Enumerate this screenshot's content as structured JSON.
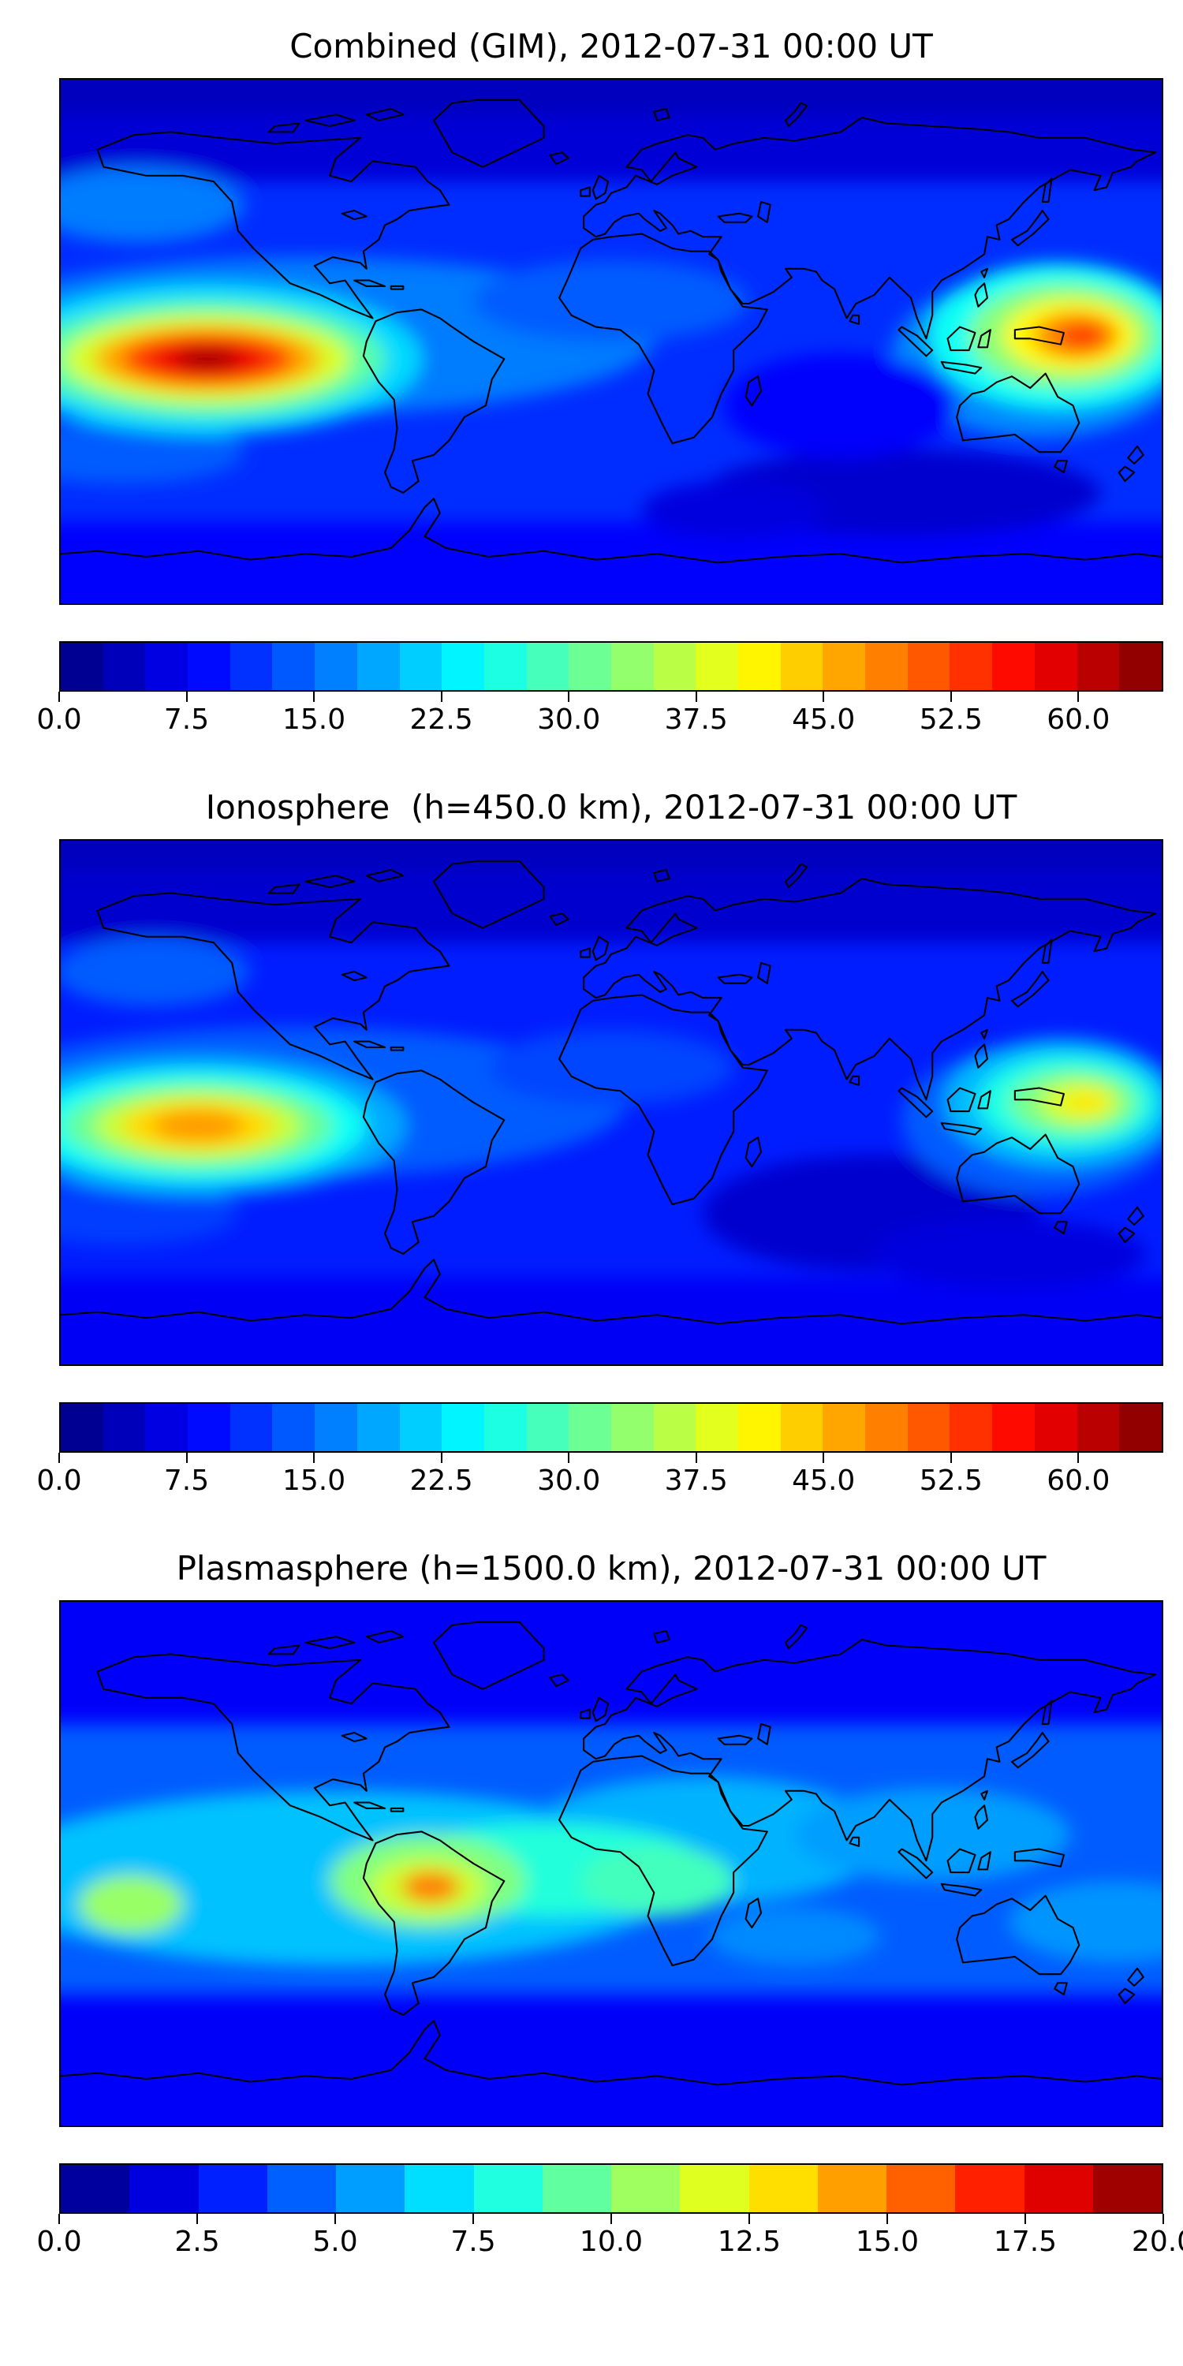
{
  "panels": [
    {
      "title": "Combined (GIM), 2012-07-31 00:00 UT",
      "colorbar": {
        "vmin": 0,
        "vmax": 65,
        "step": 2.5,
        "tick_values": [
          0,
          7.5,
          15,
          22.5,
          30,
          37.5,
          45,
          52.5,
          60
        ],
        "tick_labels": [
          "0.0",
          "7.5",
          "15.0",
          "22.5",
          "30.0",
          "37.5",
          "45.0",
          "52.5",
          "60.0"
        ]
      }
    },
    {
      "title": "Ionosphere  (h=450.0 km), 2012-07-31 00:00 UT",
      "colorbar": {
        "vmin": 0,
        "vmax": 65,
        "step": 2.5,
        "tick_values": [
          0,
          7.5,
          15,
          22.5,
          30,
          37.5,
          45,
          52.5,
          60
        ],
        "tick_labels": [
          "0.0",
          "7.5",
          "15.0",
          "22.5",
          "30.0",
          "37.5",
          "45.0",
          "52.5",
          "60.0"
        ]
      }
    },
    {
      "title": "Plasmasphere (h=1500.0 km), 2012-07-31 00:00 UT",
      "colorbar": {
        "vmin": 0,
        "vmax": 20,
        "step": 1.25,
        "tick_values": [
          0,
          2.5,
          5,
          7.5,
          10,
          12.5,
          15,
          17.5,
          20
        ],
        "tick_labels": [
          "0.0",
          "2.5",
          "5.0",
          "7.5",
          "10.0",
          "12.5",
          "15.0",
          "17.5",
          "20.0"
        ]
      }
    }
  ],
  "chart_data": [
    {
      "type": "heatmap",
      "title": "Combined (GIM), 2012-07-31 00:00 UT",
      "projection": "equirectangular",
      "lon_range": [
        -180,
        180
      ],
      "lat_range": [
        -90,
        90
      ],
      "colormap": "jet",
      "value_range": [
        0,
        65
      ],
      "contour_step": 2.5,
      "colorbar_ticks": [
        0,
        7.5,
        15,
        22.5,
        30,
        37.5,
        45,
        52.5,
        60
      ],
      "background_value": 11,
      "features": [
        {
          "name": "north-polar-low",
          "shape": "band",
          "lon0": -190,
          "lon1": 190,
          "lat0": 55,
          "lat1": 110,
          "value": 5.5
        },
        {
          "name": "arctic-minimum",
          "shape": "band",
          "lon0": -190,
          "lon1": 190,
          "lat0": 78,
          "lat1": 110,
          "value": 4
        },
        {
          "name": "south-polar-low",
          "shape": "band",
          "lon0": -190,
          "lon1": 190,
          "lat0": -110,
          "lat1": -62,
          "value": 8
        },
        {
          "name": "south-indian-minimum",
          "shape": "ellipse",
          "lon": 95,
          "lat": -52,
          "rx": 65,
          "ry": 15,
          "value": 5
        },
        {
          "name": "south-atlantic-minimum",
          "shape": "ellipse",
          "lon": 40,
          "lat": -58,
          "rx": 30,
          "ry": 10,
          "value": 6
        },
        {
          "name": "northeast-pacific-moderate",
          "shape": "ellipse",
          "lon": -155,
          "lat": 47,
          "rx": 35,
          "ry": 13,
          "value": 16
        },
        {
          "name": "equatorial-band-west",
          "shape": "ellipse",
          "lon": -100,
          "lat": 2,
          "rx": 115,
          "ry": 27,
          "value": 16
        },
        {
          "name": "africa-moderate",
          "shape": "ellipse",
          "lon": 0,
          "lat": 14,
          "rx": 45,
          "ry": 14,
          "value": 14
        },
        {
          "name": "southeast-asia-moderate",
          "shape": "ellipse",
          "lon": 140,
          "lat": -5,
          "rx": 48,
          "ry": 28,
          "value": 17
        },
        {
          "name": "south-pacific-tail",
          "shape": "ellipse",
          "lon": -160,
          "lat": -38,
          "rx": 40,
          "ry": 11,
          "value": 14
        },
        {
          "name": "indian-ocean-low",
          "shape": "ellipse",
          "lon": 75,
          "lat": -22,
          "rx": 38,
          "ry": 18,
          "value": 8
        },
        {
          "name": "pacific-anomaly-halo",
          "shape": "ellipse",
          "lon": -132,
          "lat": -6,
          "rx": 70,
          "ry": 26,
          "value": 22
        },
        {
          "name": "pacific-anomaly-ring5",
          "shape": "ellipse",
          "lon": -132,
          "lat": -6,
          "rx": 58,
          "ry": 20,
          "value": 30
        },
        {
          "name": "pacific-anomaly-ring4",
          "shape": "ellipse",
          "lon": -132,
          "lat": -6,
          "rx": 47,
          "ry": 15.5,
          "value": 38
        },
        {
          "name": "pacific-anomaly-ring3",
          "shape": "ellipse",
          "lon": -132,
          "lat": -6,
          "rx": 37,
          "ry": 11.5,
          "value": 46
        },
        {
          "name": "pacific-anomaly-ring2",
          "shape": "ellipse",
          "lon": -132,
          "lat": -6,
          "rx": 28,
          "ry": 8.5,
          "value": 53
        },
        {
          "name": "pacific-anomaly-ring1",
          "shape": "ellipse",
          "lon": -132,
          "lat": -6,
          "rx": 19,
          "ry": 6,
          "value": 58
        },
        {
          "name": "pacific-anomaly-core",
          "shape": "ellipse",
          "lon": -132,
          "lat": -6,
          "rx": 10,
          "ry": 3.5,
          "value": 63
        },
        {
          "name": "asia-anomaly-halo",
          "shape": "ellipse",
          "lon": 146,
          "lat": 2,
          "rx": 42,
          "ry": 25,
          "value": 25
        },
        {
          "name": "asia-anomaly-ring3",
          "shape": "ellipse",
          "lon": 148,
          "lat": 2,
          "rx": 31,
          "ry": 18,
          "value": 33
        },
        {
          "name": "asia-anomaly-ring2",
          "shape": "ellipse",
          "lon": 150,
          "lat": 2,
          "rx": 22,
          "ry": 12.5,
          "value": 41
        },
        {
          "name": "asia-anomaly-ring1",
          "shape": "ellipse",
          "lon": 152,
          "lat": 2,
          "rx": 14,
          "ry": 8,
          "value": 48
        },
        {
          "name": "asia-anomaly-core",
          "shape": "ellipse",
          "lon": 154,
          "lat": 2,
          "rx": 7.5,
          "ry": 4.5,
          "value": 53
        }
      ]
    },
    {
      "type": "heatmap",
      "title": "Ionosphere  (h=450.0 km), 2012-07-31 00:00 UT",
      "projection": "equirectangular",
      "lon_range": [
        -180,
        180
      ],
      "lat_range": [
        -90,
        90
      ],
      "colormap": "jet",
      "value_range": [
        0,
        65
      ],
      "contour_step": 2.5,
      "colorbar_ticks": [
        0,
        7.5,
        15,
        22.5,
        30,
        37.5,
        45,
        52.5,
        60
      ],
      "background_value": 10,
      "features": [
        {
          "name": "north-polar-low",
          "shape": "band",
          "lon0": -190,
          "lon1": 190,
          "lat0": 55,
          "lat1": 110,
          "value": 5
        },
        {
          "name": "arctic-minimum",
          "shape": "band",
          "lon0": -190,
          "lon1": 190,
          "lat0": 80,
          "lat1": 110,
          "value": 4
        },
        {
          "name": "south-polar-low",
          "shape": "band",
          "lon0": -190,
          "lon1": 190,
          "lat0": -110,
          "lat1": -60,
          "value": 7.5
        },
        {
          "name": "indian-ocean-minimum",
          "shape": "ellipse",
          "lon": 85,
          "lat": -38,
          "rx": 55,
          "ry": 20,
          "value": 5
        },
        {
          "name": "south-pacific-minimum",
          "shape": "ellipse",
          "lon": 130,
          "lat": -52,
          "rx": 45,
          "ry": 12,
          "value": 6
        },
        {
          "name": "northeast-pacific-moderate",
          "shape": "ellipse",
          "lon": -150,
          "lat": 45,
          "rx": 32,
          "ry": 12,
          "value": 14
        },
        {
          "name": "equatorial-band-west",
          "shape": "ellipse",
          "lon": -105,
          "lat": 0,
          "rx": 110,
          "ry": 26,
          "value": 14
        },
        {
          "name": "southeast-asia-moderate",
          "shape": "ellipse",
          "lon": 140,
          "lat": -6,
          "rx": 45,
          "ry": 26,
          "value": 14
        },
        {
          "name": "south-pacific-tail",
          "shape": "ellipse",
          "lon": -160,
          "lat": -38,
          "rx": 38,
          "ry": 11,
          "value": 12
        },
        {
          "name": "africa-moderate",
          "shape": "ellipse",
          "lon": 0,
          "lat": 12,
          "rx": 40,
          "ry": 13,
          "value": 12.5
        },
        {
          "name": "pacific-anomaly-halo",
          "shape": "ellipse",
          "lon": -135,
          "lat": -8,
          "rx": 68,
          "ry": 24,
          "value": 19
        },
        {
          "name": "pacific-anomaly-ring4",
          "shape": "ellipse",
          "lon": -135,
          "lat": -8,
          "rx": 55,
          "ry": 19,
          "value": 25
        },
        {
          "name": "pacific-anomaly-ring3",
          "shape": "ellipse",
          "lon": -135,
          "lat": -8,
          "rx": 44,
          "ry": 15,
          "value": 31
        },
        {
          "name": "pacific-anomaly-ring2",
          "shape": "ellipse",
          "lon": -135,
          "lat": -8,
          "rx": 34,
          "ry": 11.5,
          "value": 37
        },
        {
          "name": "pacific-anomaly-ring1",
          "shape": "ellipse",
          "lon": -135,
          "lat": -8,
          "rx": 25,
          "ry": 8.5,
          "value": 43
        },
        {
          "name": "pacific-anomaly-core",
          "shape": "ellipse",
          "lon": -135,
          "lat": -8,
          "rx": 15,
          "ry": 5.5,
          "value": 47
        },
        {
          "name": "asia-anomaly-halo",
          "shape": "ellipse",
          "lon": 147,
          "lat": 0,
          "rx": 38,
          "ry": 22,
          "value": 20
        },
        {
          "name": "asia-anomaly-ring2",
          "shape": "ellipse",
          "lon": 149,
          "lat": 0,
          "rx": 29,
          "ry": 16,
          "value": 26
        },
        {
          "name": "asia-anomaly-ring1",
          "shape": "ellipse",
          "lon": 151,
          "lat": 0,
          "rx": 21,
          "ry": 11,
          "value": 32
        },
        {
          "name": "asia-anomaly-inner",
          "shape": "ellipse",
          "lon": 153,
          "lat": 0,
          "rx": 13,
          "ry": 7,
          "value": 38
        },
        {
          "name": "asia-anomaly-core",
          "shape": "ellipse",
          "lon": 155,
          "lat": 0,
          "rx": 7,
          "ry": 4,
          "value": 42
        }
      ]
    },
    {
      "type": "heatmap",
      "title": "Plasmasphere (h=1500.0 km), 2012-07-31 00:00 UT",
      "projection": "equirectangular",
      "lon_range": [
        -180,
        180
      ],
      "lat_range": [
        -90,
        90
      ],
      "colormap": "jet",
      "value_range": [
        0,
        20
      ],
      "contour_step": 1.25,
      "colorbar_ticks": [
        0,
        2.5,
        5,
        7.5,
        10,
        12.5,
        15,
        17.5,
        20
      ],
      "background_value": 4.3,
      "features": [
        {
          "name": "north-polar-low",
          "shape": "band",
          "lon0": -190,
          "lon1": 190,
          "lat0": 48,
          "lat1": 110,
          "value": 2.4
        },
        {
          "name": "south-polar-low",
          "shape": "band",
          "lon0": -190,
          "lon1": 190,
          "lat0": -110,
          "lat1": -45,
          "value": 2.4
        },
        {
          "name": "equatorial-band-americas",
          "shape": "ellipse",
          "lon": -90,
          "lat": -5,
          "rx": 115,
          "ry": 30,
          "value": 6.3
        },
        {
          "name": "equatorial-band-africa-europe",
          "shape": "ellipse",
          "lon": 30,
          "lat": 8,
          "rx": 60,
          "ry": 22,
          "value": 6
        },
        {
          "name": "equatorial-band-asia",
          "shape": "ellipse",
          "lon": 105,
          "lat": 10,
          "rx": 45,
          "ry": 16,
          "value": 5.6
        },
        {
          "name": "equatorial-band-pacific",
          "shape": "ellipse",
          "lon": 165,
          "lat": -20,
          "rx": 35,
          "ry": 14,
          "value": 5.4
        },
        {
          "name": "south-indian-weak",
          "shape": "ellipse",
          "lon": 60,
          "lat": -25,
          "rx": 28,
          "ry": 10,
          "value": 5.2
        },
        {
          "name": "atlantic-africa-green",
          "shape": "ellipse",
          "lon": -20,
          "lat": -2,
          "rx": 52,
          "ry": 16,
          "value": 8.2
        },
        {
          "name": "africa-green",
          "shape": "ellipse",
          "lon": 15,
          "lat": -6,
          "rx": 25,
          "ry": 12,
          "value": 8.8
        },
        {
          "name": "south-america-green",
          "shape": "ellipse",
          "lon": -60,
          "lat": -6,
          "rx": 32,
          "ry": 16,
          "value": 10
        },
        {
          "name": "central-pacific-green-patch",
          "shape": "ellipse",
          "lon": -157,
          "lat": -14,
          "rx": 17,
          "ry": 10,
          "value": 10.5
        },
        {
          "name": "south-america-yellow-green",
          "shape": "ellipse",
          "lon": -60,
          "lat": -8,
          "rx": 19,
          "ry": 10,
          "value": 11.5
        },
        {
          "name": "south-america-orange-core",
          "shape": "ellipse",
          "lon": -59,
          "lat": -8,
          "rx": 9.5,
          "ry": 5.5,
          "value": 15
        }
      ]
    }
  ]
}
